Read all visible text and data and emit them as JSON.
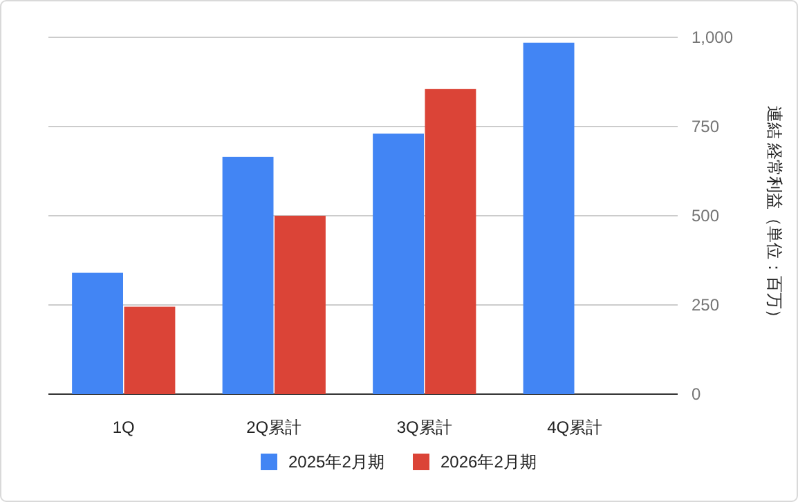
{
  "chart_data": {
    "type": "bar",
    "categories": [
      "1Q",
      "2Q累計",
      "3Q累計",
      "4Q累計"
    ],
    "series": [
      {
        "name": "2025年2月期",
        "color": "#4285f4",
        "values": [
          340,
          665,
          730,
          985
        ]
      },
      {
        "name": "2026年2月期",
        "color": "#db4437",
        "values": [
          245,
          500,
          855,
          null
        ]
      }
    ],
    "ylabel": "連結 経常利益（単位：百万）",
    "ylim": [
      0,
      1000
    ],
    "yticks": [
      0,
      250,
      500,
      750,
      {
        "value": 1000,
        "label": "1,000"
      }
    ],
    "grid": "y",
    "legend": "bottom"
  }
}
